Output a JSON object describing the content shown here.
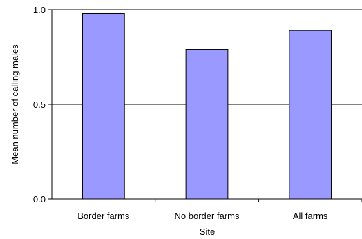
{
  "chart_data": {
    "type": "bar",
    "title": "",
    "xlabel": "Site",
    "ylabel": "Mean number of calling males",
    "categories": [
      "Border farms",
      "No border farms",
      "All farms"
    ],
    "values": [
      0.98,
      0.79,
      0.89
    ],
    "ylim": [
      0.0,
      1.0
    ],
    "yticks": [
      "0.0",
      "0.5",
      "1.0"
    ],
    "ytick_values": [
      0.0,
      0.5,
      1.0
    ],
    "grid": "horizontal major gridlines",
    "legend": "none",
    "colors": {
      "bar_fill": "#9999ff",
      "bar_stroke": "#000000",
      "gridline": "#000000",
      "axis": "#000000"
    }
  }
}
